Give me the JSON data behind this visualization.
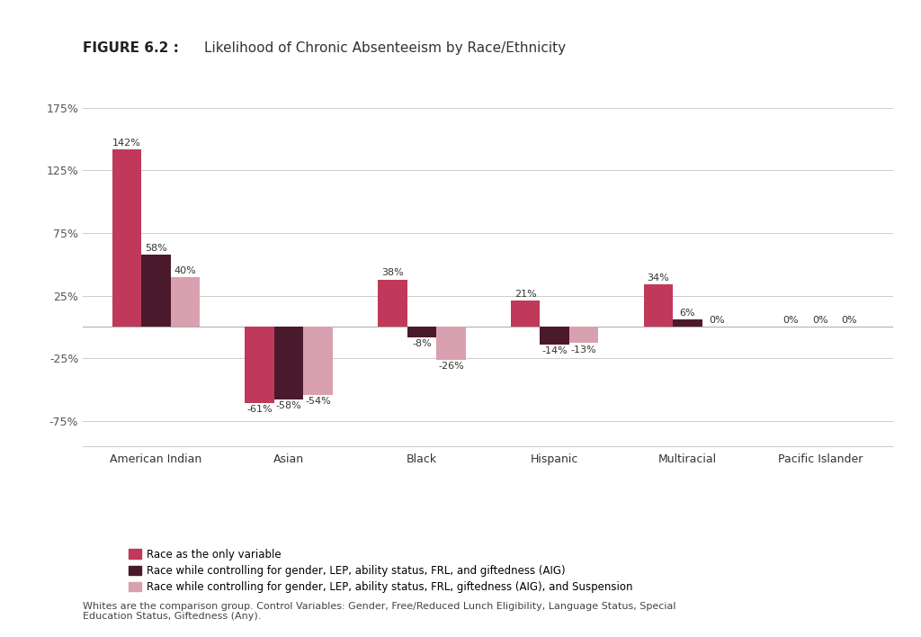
{
  "title_bold": "FIGURE 6.2 : ",
  "title_normal": "Likelihood of Chronic Absenteeism by Race/Ethnicity",
  "categories": [
    "American Indian",
    "Asian",
    "Black",
    "Hispanic",
    "Multiracial",
    "Pacific Islander"
  ],
  "series": [
    {
      "name": "Race as the only variable",
      "values": [
        142,
        -61,
        38,
        21,
        34,
        0
      ],
      "color": "#c0395a"
    },
    {
      "name": "Race while controlling for gender, LEP, ability status, FRL, and giftedness (AIG)",
      "values": [
        58,
        -58,
        -8,
        -14,
        6,
        0
      ],
      "color": "#4a1a2c"
    },
    {
      "name": "Race while controlling for gender, LEP, ability status, FRL, giftedness (AIG), and Suspension",
      "values": [
        40,
        -54,
        -26,
        -13,
        0,
        0
      ],
      "color": "#d9a0b0"
    }
  ],
  "ylim": [
    -95,
    195
  ],
  "yticks": [
    -75,
    -25,
    25,
    75,
    125,
    175
  ],
  "ytick_labels": [
    "-75%",
    "-25%",
    "25%",
    "75%",
    "125%",
    "175%"
  ],
  "footnote": "Whites are the comparison group. Control Variables: Gender, Free/Reduced Lunch Eligibility, Language Status, Special\nEducation Status, Giftedness (Any).",
  "background_color": "#ffffff",
  "bar_width": 0.22,
  "label_fontsize": 8,
  "axis_fontsize": 9,
  "title_fontsize": 11
}
